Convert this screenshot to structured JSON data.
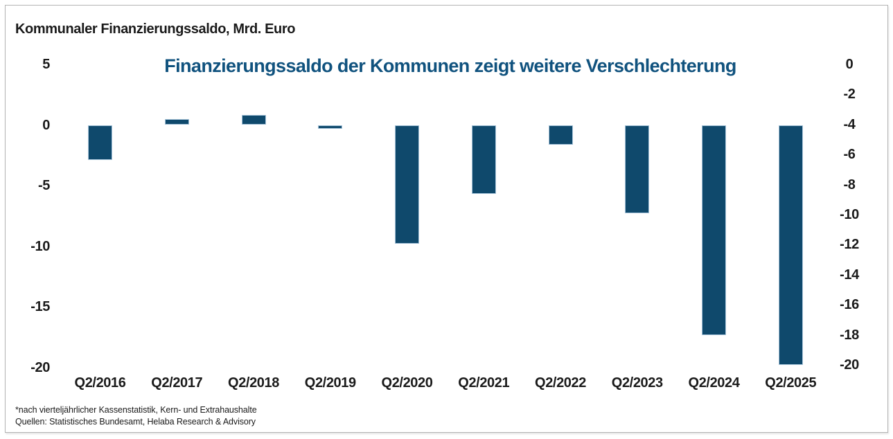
{
  "header": {
    "label": "Kommunaler Finanzierungssaldo, Mrd. Euro"
  },
  "title": "Finanzierungssaldo der Kommunen zeigt weitere Verschlechterung",
  "footnotes": [
    "*nach vierteljährlicher Kassenstatistik, Kern- und Extrahaushalte",
    "Quellen: Statistisches Bundesamt, Helaba Research & Advisory"
  ],
  "colors": {
    "bar_fill": "#0F496C",
    "bar_border": "#A7C4DA",
    "title_blue": "#10527E",
    "text": "#1A1A1A",
    "frame_border": "#B3B3B3",
    "background": "#FFFFFF"
  },
  "chart_data": {
    "type": "bar",
    "title": "Finanzierungssaldo der Kommunen zeigt weitere Verschlechterung",
    "subtitle": "Kommunaler Finanzierungssaldo, Mrd. Euro",
    "categories": [
      "Q2/2016",
      "Q2/2017",
      "Q2/2018",
      "Q2/2019",
      "Q2/2020",
      "Q2/2021",
      "Q2/2022",
      "Q2/2023",
      "Q2/2024",
      "Q2/2025"
    ],
    "values": [
      -2.9,
      0.5,
      0.8,
      -0.3,
      -9.8,
      -5.7,
      -1.6,
      -7.3,
      -17.3,
      -19.8
    ],
    "xlabel": "",
    "ylabel": "Mrd. Euro",
    "left_axis": {
      "ticks": [
        5,
        0,
        -5,
        -10,
        -15,
        -20
      ],
      "range": [
        5,
        -20
      ]
    },
    "right_axis": {
      "ticks": [
        0,
        -2,
        -4,
        -6,
        -8,
        -10,
        -12,
        -14,
        -16,
        -18,
        -20
      ],
      "range": [
        0,
        -20
      ]
    },
    "grid": false,
    "legend": "none",
    "bar_color": "#0F496C"
  }
}
